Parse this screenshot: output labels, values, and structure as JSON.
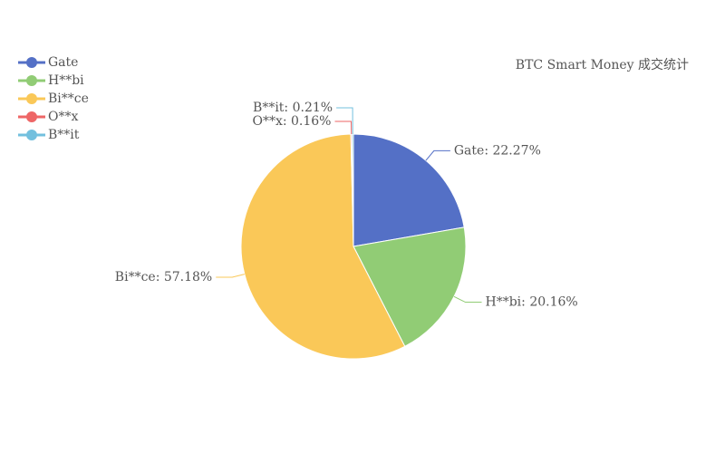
{
  "chart_data": {
    "type": "pie",
    "title": "BTC Smart Money 成交统计",
    "categories": [
      "Gate",
      "H**bi",
      "Bi**ce",
      "O**x",
      "B**it"
    ],
    "values": [
      22.27,
      20.16,
      57.18,
      0.16,
      0.21
    ],
    "value_labels": [
      "Gate: 22.27%",
      "H**bi: 20.16%",
      "Bi**ce: 57.18%",
      "O**x: 0.16%",
      "B**it: 0.21%"
    ],
    "colors": [
      "#5470c6",
      "#91cc75",
      "#fac858",
      "#ee6666",
      "#73c0de"
    ],
    "legend": "top-left"
  }
}
